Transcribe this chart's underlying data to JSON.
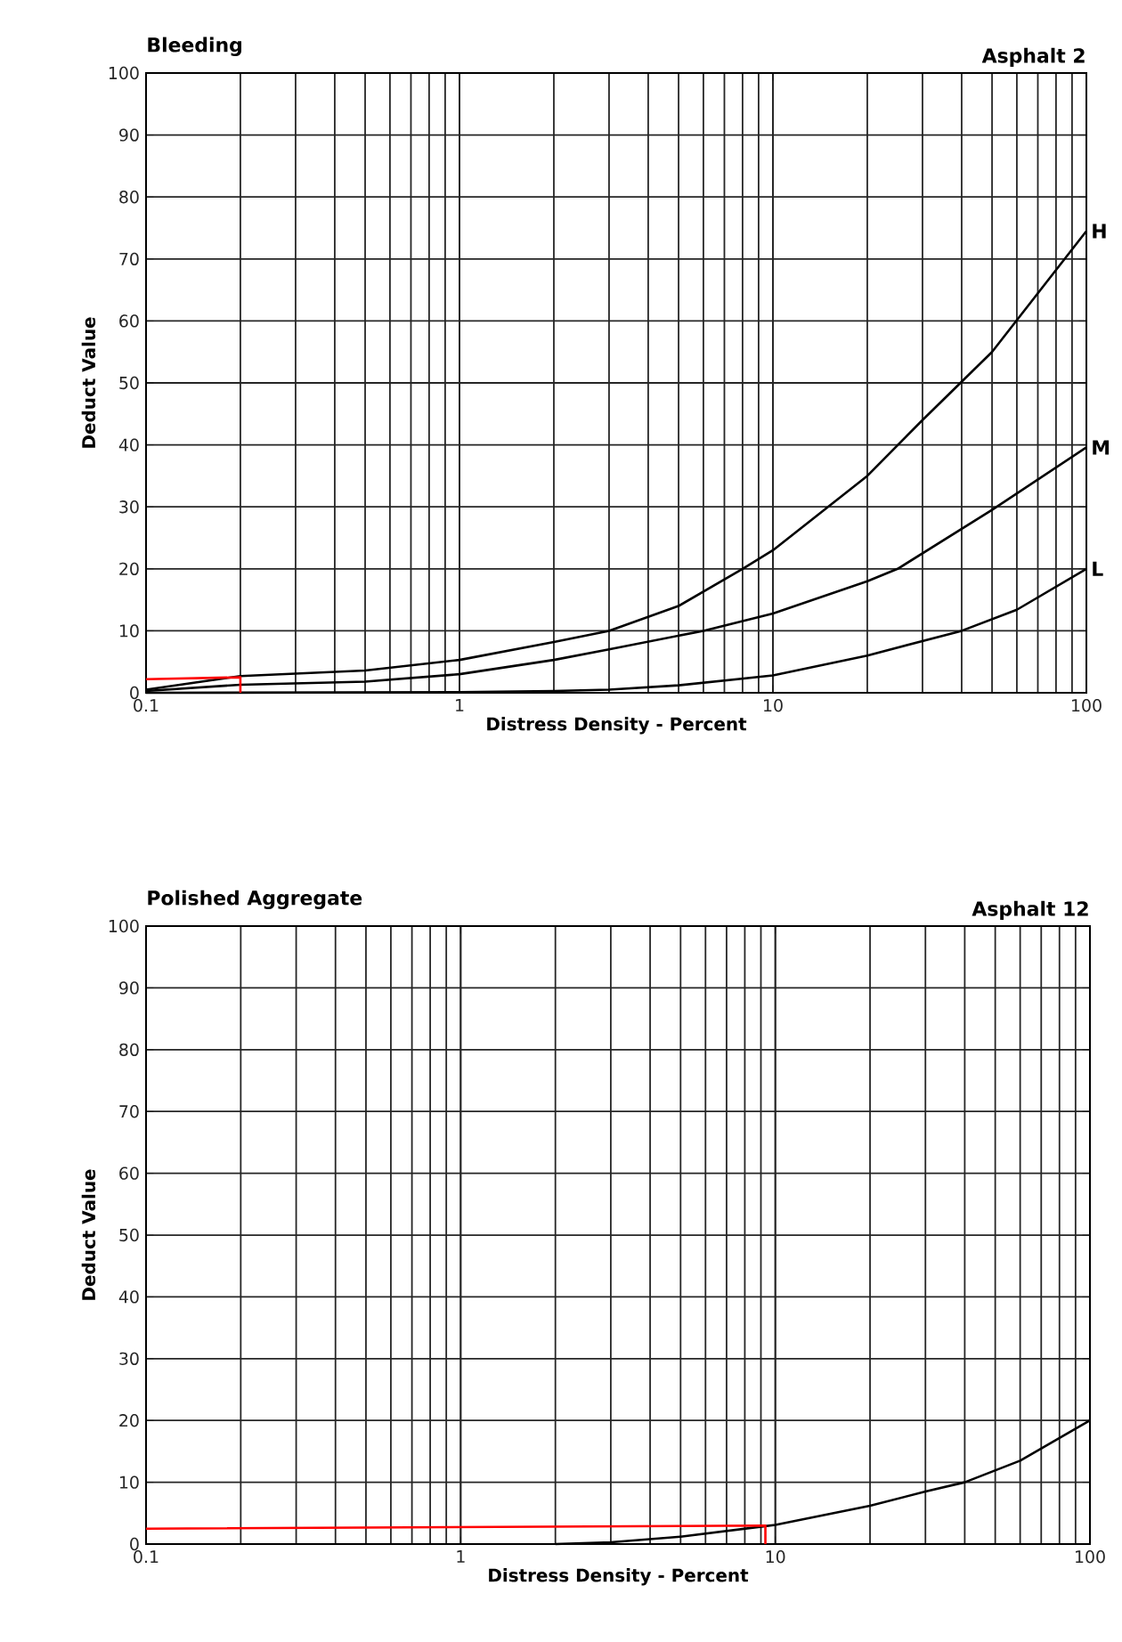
{
  "chart_data": [
    {
      "type": "line",
      "title": "Bleeding",
      "subtitle": "Asphalt 2",
      "xlabel": "Distress Density - Percent",
      "ylabel": "Deduct Value",
      "log": "x",
      "grid": true,
      "legend": "right",
      "line_style": "solid",
      "xlim": [
        0.1,
        100
      ],
      "ylim": [
        0,
        100
      ],
      "xticks": [
        0.1,
        1,
        10,
        100
      ],
      "yticks": [
        0,
        10,
        20,
        30,
        40,
        50,
        60,
        70,
        80,
        90,
        100
      ],
      "series": [
        {
          "name": "H",
          "color": "#000000",
          "x": [
            0.1,
            0.2,
            0.5,
            1,
            2,
            3,
            5,
            8,
            10,
            20,
            30,
            50,
            100
          ],
          "values": [
            0.5,
            2.7,
            3.6,
            5.3,
            8.2,
            10,
            14,
            20,
            23,
            35,
            44,
            55,
            74.5
          ]
        },
        {
          "name": "M",
          "color": "#000000",
          "x": [
            0.1,
            0.2,
            0.5,
            1,
            2,
            3,
            6,
            10,
            20,
            25,
            50,
            100
          ],
          "values": [
            0.3,
            1.3,
            1.8,
            3,
            5.3,
            7,
            10,
            12.8,
            18,
            20,
            29.5,
            39.6
          ]
        },
        {
          "name": "L",
          "color": "#000000",
          "x": [
            0.1,
            1,
            2,
            3,
            5,
            10,
            20,
            40,
            60,
            100
          ],
          "values": [
            0,
            0.1,
            0.3,
            0.5,
            1.2,
            2.8,
            6,
            10,
            13.4,
            20
          ]
        },
        {
          "color": "#ff0000",
          "x": [
            0.1,
            0.2,
            0.2
          ],
          "values": [
            2.2,
            2.5,
            0
          ]
        }
      ]
    },
    {
      "type": "line",
      "title": "Polished Aggregate",
      "subtitle": "Asphalt 12",
      "xlabel": "Distress Density - Percent",
      "ylabel": "Deduct Value",
      "log": "x",
      "grid": true,
      "line_style": "solid",
      "xlim": [
        0.1,
        100
      ],
      "ylim": [
        0,
        100
      ],
      "xticks": [
        0.1,
        1,
        10,
        100
      ],
      "yticks": [
        0,
        10,
        20,
        30,
        40,
        50,
        60,
        70,
        80,
        90,
        100
      ],
      "series": [
        {
          "color": "#000000",
          "x": [
            2,
            3,
            5,
            9.3,
            10,
            20,
            30,
            40,
            60,
            100
          ],
          "values": [
            0,
            0.3,
            1.2,
            2.9,
            3.1,
            6.2,
            8.5,
            10,
            13.5,
            20
          ]
        },
        {
          "color": "#ff0000",
          "x": [
            0.1,
            9.3,
            9.3
          ],
          "values": [
            2.5,
            3,
            0
          ]
        }
      ]
    }
  ]
}
